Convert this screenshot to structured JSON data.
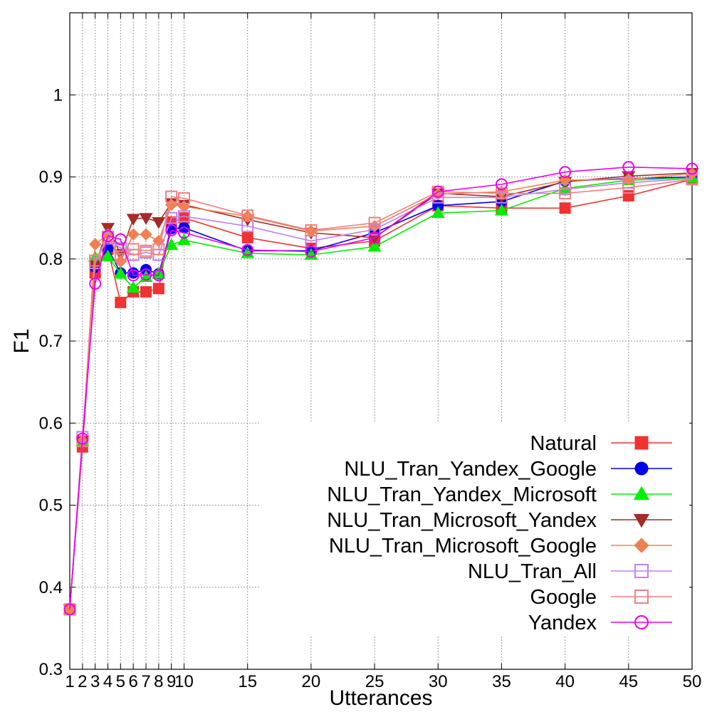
{
  "chart_data": {
    "type": "line",
    "title": "",
    "xlabel": "Utterances",
    "ylabel": "F1",
    "xlim": [
      1,
      50
    ],
    "ylim": [
      0.3,
      1.1
    ],
    "xticks": [
      1,
      2,
      3,
      4,
      5,
      6,
      7,
      8,
      9,
      10,
      15,
      20,
      25,
      30,
      35,
      40,
      45,
      50
    ],
    "yticks": [
      0.3,
      0.4,
      0.5,
      0.6,
      0.7,
      0.8,
      0.9,
      1
    ],
    "ytick_labels": [
      "0.3",
      "0.4",
      "0.5",
      "0.6",
      "0.7",
      "0.8",
      "0.9",
      "1"
    ],
    "grid": true,
    "legend_position": "bottom-right",
    "x": [
      1,
      2,
      3,
      4,
      5,
      6,
      7,
      8,
      9,
      10,
      15,
      20,
      25,
      30,
      35,
      40,
      45,
      50
    ],
    "series": [
      {
        "name": "Natural",
        "color": "#f03232",
        "marker": "square-filled",
        "values": [
          0.373,
          0.571,
          0.783,
          0.812,
          0.747,
          0.76,
          0.76,
          0.764,
          0.845,
          0.85,
          0.826,
          0.813,
          0.822,
          0.865,
          0.862,
          0.862,
          0.877,
          0.897
        ]
      },
      {
        "name": "NLU_Tran_Yandex_Google",
        "color": "#0000ee",
        "marker": "circle-filled",
        "values": [
          0.373,
          0.578,
          0.79,
          0.813,
          0.783,
          0.783,
          0.787,
          0.782,
          0.837,
          0.838,
          0.81,
          0.81,
          0.832,
          0.865,
          0.87,
          0.895,
          0.898,
          0.9
        ]
      },
      {
        "name": "NLU_Tran_Yandex_Microsoft",
        "color": "#00ee00",
        "marker": "triangle-up-filled",
        "values": [
          0.373,
          0.578,
          0.802,
          0.803,
          0.782,
          0.765,
          0.778,
          0.782,
          0.817,
          0.823,
          0.807,
          0.805,
          0.815,
          0.856,
          0.859,
          0.886,
          0.896,
          0.899
        ]
      },
      {
        "name": "NLU_Tran_Microsoft_Yandex",
        "color": "#a52a2a",
        "marker": "triangle-down-filled",
        "values": [
          0.373,
          0.578,
          0.792,
          0.838,
          0.806,
          0.849,
          0.85,
          0.845,
          0.868,
          0.866,
          0.848,
          0.832,
          0.826,
          0.88,
          0.876,
          0.894,
          0.901,
          0.905
        ]
      },
      {
        "name": "NLU_Tran_Microsoft_Google",
        "color": "#f08050",
        "marker": "diamond-filled",
        "values": [
          0.373,
          0.578,
          0.818,
          0.83,
          0.797,
          0.83,
          0.83,
          0.822,
          0.866,
          0.864,
          0.852,
          0.834,
          0.84,
          0.879,
          0.882,
          0.896,
          0.897,
          0.904
        ]
      },
      {
        "name": "NLU_Tran_All",
        "color": "#c080f0",
        "marker": "square-open",
        "values": [
          0.373,
          0.583,
          0.795,
          0.825,
          0.813,
          0.805,
          0.808,
          0.805,
          0.85,
          0.852,
          0.84,
          0.822,
          0.836,
          0.875,
          0.875,
          0.885,
          0.893,
          0.898
        ]
      },
      {
        "name": "Google",
        "color": "#f08080",
        "marker": "square-open",
        "values": [
          0.373,
          0.578,
          0.798,
          0.827,
          0.803,
          0.812,
          0.81,
          0.812,
          0.876,
          0.874,
          0.853,
          0.835,
          0.844,
          0.882,
          0.88,
          0.88,
          0.887,
          0.897
        ]
      },
      {
        "name": "Yandex",
        "color": "#ee00ee",
        "marker": "circle-open",
        "values": [
          0.373,
          0.581,
          0.77,
          0.828,
          0.824,
          0.78,
          0.781,
          0.78,
          0.835,
          0.832,
          0.811,
          0.809,
          0.826,
          0.882,
          0.891,
          0.906,
          0.912,
          0.91
        ]
      }
    ]
  }
}
